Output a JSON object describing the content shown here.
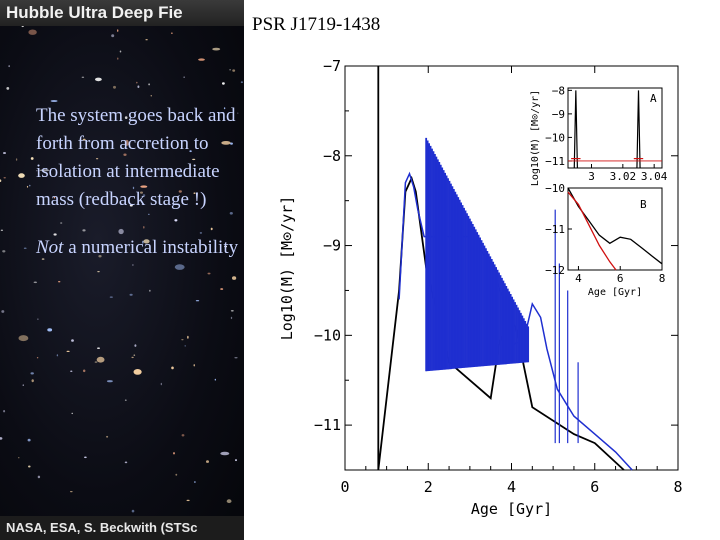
{
  "slide": {
    "title": "PSR  J1719-1438",
    "text_line1": "The system goes back and forth from accretion to isolation at intermediate mass (redback stage !)",
    "text_line2_em": "Not",
    "text_line2_rest": " a numerical instability"
  },
  "background_image": {
    "header": "Hubble Ultra Deep Fie",
    "credit": "NASA, ESA, S. Beckwith (STSc"
  },
  "chart_data": [
    {
      "type": "line",
      "xlabel": "Age [Gyr]",
      "ylabel": "Log10(M) [M⊙/yr]",
      "xlim": [
        0,
        8
      ],
      "ylim": [
        -11.5,
        -7
      ],
      "x_ticks": [
        0,
        2,
        4,
        6,
        8
      ],
      "y_ticks": [
        -7,
        -8,
        -9,
        -10,
        -11
      ],
      "grid": false,
      "colors": {
        "black_track": "#000000",
        "blue_track": "#1f2fd0"
      },
      "series": [
        {
          "color": "black",
          "x": [
            0.8,
            0.8,
            1.3,
            1.45,
            1.6,
            1.7,
            1.95,
            2.5,
            3.5,
            3.7,
            3.9,
            4.1,
            4.5,
            5.5,
            6.0,
            6.7
          ],
          "y": [
            -7.0,
            -11.5,
            -9.5,
            -8.4,
            -8.25,
            -8.4,
            -9.25,
            -10.3,
            -10.7,
            -10.1,
            -9.85,
            -9.9,
            -10.8,
            -11.1,
            -11.2,
            -11.5
          ]
        },
        {
          "color": "blue",
          "x": [
            1.3,
            1.45,
            1.55,
            1.65,
            1.75,
            1.9,
            3.0,
            3.5,
            3.8,
            4.05,
            4.3,
            4.5,
            4.7,
            4.85,
            5.1,
            5.5,
            6.0,
            6.5,
            6.9
          ],
          "y": [
            -9.6,
            -8.3,
            -8.2,
            -8.35,
            -8.6,
            -8.9,
            -8.9,
            -9.2,
            -9.6,
            -10.1,
            -10.05,
            -9.65,
            -9.8,
            -10.15,
            -10.6,
            -10.9,
            -11.1,
            -11.3,
            -11.5
          ]
        },
        {
          "color": "blue",
          "x": [
            1.95,
            4.4
          ],
          "y_upper": [
            -7.8,
            -9.9
          ],
          "y_lower": [
            -10.4,
            -10.3
          ]
        }
      ]
    },
    {
      "type": "line",
      "panel_label": "A",
      "ylabel": "Log10(M) [M⊙/yr]",
      "xlim": [
        2.985,
        3.045
      ],
      "ylim": [
        -11.3,
        -7.9
      ],
      "x_ticks": [
        3,
        3.02,
        3.04
      ],
      "y_ticks": [
        -8,
        -9,
        -10,
        -11
      ],
      "spike_x": [
        2.99,
        3.03
      ],
      "spike_y": -8.0
    },
    {
      "type": "line",
      "panel_label": "B",
      "xlabel": "Age [Gyr]",
      "xlim": [
        3.5,
        8
      ],
      "ylim": [
        -12,
        -10
      ],
      "x_ticks": [
        4,
        6,
        8
      ],
      "y_ticks": [
        -10,
        -11,
        -12
      ],
      "series": [
        {
          "color": "black",
          "x": [
            3.5,
            4.0,
            4.5,
            5.0,
            5.5,
            6.0,
            6.5,
            7.0,
            7.5,
            8.0
          ],
          "y": [
            -10.0,
            -10.45,
            -10.8,
            -11.15,
            -11.35,
            -11.2,
            -11.25,
            -11.45,
            -11.65,
            -11.85
          ]
        },
        {
          "color": "red",
          "x": [
            3.5,
            4.0,
            4.5,
            5.0,
            5.5,
            5.8
          ],
          "y": [
            -10.1,
            -10.4,
            -10.9,
            -11.4,
            -11.8,
            -12.0
          ]
        }
      ]
    }
  ]
}
